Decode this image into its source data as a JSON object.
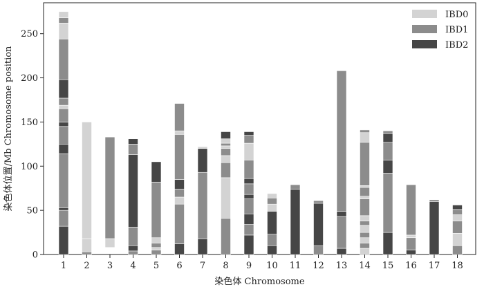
{
  "chart_data": {
    "type": "bar",
    "stacked": true,
    "xlabel": "染色体 Chromosome",
    "ylabel": "染色体位置/Mb Chromosome position",
    "ylim": [
      0,
      285
    ],
    "yticks": [
      0,
      50,
      100,
      150,
      200,
      250
    ],
    "categories": [
      "1",
      "2",
      "3",
      "4",
      "5",
      "6",
      "7",
      "8",
      "9",
      "10",
      "11",
      "12",
      "13",
      "14",
      "15",
      "16",
      "17",
      "18"
    ],
    "legend": {
      "position": "top-right",
      "entries": [
        "IBD0",
        "IBD1",
        "IBD2"
      ]
    },
    "colors": {
      "IBD0": "#d3d3d3",
      "IBD1": "#8c8c8c",
      "IBD2": "#464646"
    },
    "segments": {
      "1": [
        [
          "IBD2",
          0,
          32
        ],
        [
          "IBD1",
          32,
          50
        ],
        [
          "IBD2",
          50,
          53
        ],
        [
          "IBD1",
          53,
          114
        ],
        [
          "IBD2",
          114,
          125
        ],
        [
          "IBD1",
          125,
          145
        ],
        [
          "IBD2",
          145,
          150
        ],
        [
          "IBD1",
          150,
          165
        ],
        [
          "IBD0",
          165,
          169
        ],
        [
          "IBD1",
          169,
          177
        ],
        [
          "IBD2",
          177,
          198
        ],
        [
          "IBD1",
          198,
          244
        ],
        [
          "IBD0",
          244,
          262
        ],
        [
          "IBD1",
          262,
          268
        ],
        [
          "IBD0",
          268,
          275
        ]
      ],
      "2": [
        [
          "IBD1",
          0,
          3
        ],
        [
          "IBD0",
          3,
          18
        ],
        [
          "IBD0",
          18,
          150
        ]
      ],
      "3": [
        [
          "IBD0",
          8,
          18
        ],
        [
          "IBD1",
          18,
          133
        ]
      ],
      "4": [
        [
          "IBD1",
          0,
          4
        ],
        [
          "IBD2",
          4,
          10
        ],
        [
          "IBD1",
          10,
          31
        ],
        [
          "IBD2",
          31,
          113
        ],
        [
          "IBD1",
          113,
          125
        ],
        [
          "IBD2",
          125,
          131
        ]
      ],
      "5": [
        [
          "IBD1",
          0,
          5
        ],
        [
          "IBD0",
          5,
          8
        ],
        [
          "IBD1",
          8,
          13
        ],
        [
          "IBD0",
          13,
          19
        ],
        [
          "IBD1",
          19,
          82
        ],
        [
          "IBD2",
          82,
          105
        ]
      ],
      "6": [
        [
          "IBD2",
          0,
          12
        ],
        [
          "IBD1",
          12,
          57
        ],
        [
          "IBD0",
          57,
          65
        ],
        [
          "IBD1",
          65,
          74
        ],
        [
          "IBD2",
          74,
          85
        ],
        [
          "IBD1",
          85,
          136
        ],
        [
          "IBD0",
          136,
          140
        ],
        [
          "IBD1",
          140,
          171
        ]
      ],
      "7": [
        [
          "IBD2",
          0,
          18
        ],
        [
          "IBD1",
          18,
          93
        ],
        [
          "IBD2",
          93,
          120
        ],
        [
          "IBD0",
          120,
          122
        ]
      ],
      "8": [
        [
          "IBD1",
          0,
          41
        ],
        [
          "IBD0",
          41,
          87
        ],
        [
          "IBD1",
          87,
          104
        ],
        [
          "IBD0",
          104,
          112
        ],
        [
          "IBD1",
          112,
          120
        ],
        [
          "IBD0",
          120,
          123
        ],
        [
          "IBD1",
          123,
          126
        ],
        [
          "IBD0",
          126,
          131
        ],
        [
          "IBD2",
          131,
          139
        ]
      ],
      "9": [
        [
          "IBD2",
          0,
          22
        ],
        [
          "IBD1",
          22,
          34
        ],
        [
          "IBD2",
          34,
          46
        ],
        [
          "IBD1",
          46,
          63
        ],
        [
          "IBD2",
          63,
          68
        ],
        [
          "IBD1",
          68,
          80
        ],
        [
          "IBD2",
          80,
          86
        ],
        [
          "IBD1",
          86,
          107
        ],
        [
          "IBD0",
          107,
          126
        ],
        [
          "IBD1",
          126,
          135
        ],
        [
          "IBD2",
          135,
          139
        ]
      ],
      "10": [
        [
          "IBD2",
          0,
          10
        ],
        [
          "IBD1",
          10,
          23
        ],
        [
          "IBD2",
          23,
          49
        ],
        [
          "IBD0",
          49,
          57
        ],
        [
          "IBD1",
          57,
          64
        ],
        [
          "IBD0",
          64,
          69
        ]
      ],
      "11": [
        [
          "IBD2",
          0,
          74
        ],
        [
          "IBD1",
          74,
          79
        ]
      ],
      "12": [
        [
          "IBD1",
          0,
          10
        ],
        [
          "IBD2",
          10,
          58
        ],
        [
          "IBD1",
          58,
          61
        ]
      ],
      "13": [
        [
          "IBD2",
          0,
          7
        ],
        [
          "IBD1",
          7,
          43
        ],
        [
          "IBD2",
          43,
          49
        ],
        [
          "IBD1",
          49,
          208
        ]
      ],
      "14": [
        [
          "IBD0",
          0,
          7
        ],
        [
          "IBD1",
          7,
          13
        ],
        [
          "IBD0",
          13,
          19
        ],
        [
          "IBD1",
          19,
          25
        ],
        [
          "IBD0",
          25,
          33
        ],
        [
          "IBD1",
          33,
          38
        ],
        [
          "IBD0",
          38,
          44
        ],
        [
          "IBD1",
          44,
          63
        ],
        [
          "IBD0",
          63,
          66
        ],
        [
          "IBD1",
          66,
          76
        ],
        [
          "IBD0",
          76,
          78
        ],
        [
          "IBD1",
          78,
          127
        ],
        [
          "IBD0",
          127,
          138
        ],
        [
          "IBD1",
          138,
          141
        ]
      ],
      "15": [
        [
          "IBD2",
          0,
          25
        ],
        [
          "IBD1",
          25,
          92
        ],
        [
          "IBD2",
          92,
          107
        ],
        [
          "IBD1",
          107,
          127
        ],
        [
          "IBD2",
          127,
          137
        ],
        [
          "IBD1",
          137,
          140
        ]
      ],
      "16": [
        [
          "IBD2",
          0,
          5
        ],
        [
          "IBD1",
          5,
          19
        ],
        [
          "IBD0",
          19,
          22
        ],
        [
          "IBD1",
          22,
          79
        ]
      ],
      "17": [
        [
          "IBD2",
          0,
          60
        ],
        [
          "IBD1",
          60,
          62
        ]
      ],
      "18": [
        [
          "IBD1",
          0,
          10
        ],
        [
          "IBD0",
          10,
          24
        ],
        [
          "IBD1",
          24,
          38
        ],
        [
          "IBD0",
          38,
          45
        ],
        [
          "IBD1",
          45,
          51
        ],
        [
          "IBD2",
          51,
          56
        ]
      ]
    }
  }
}
